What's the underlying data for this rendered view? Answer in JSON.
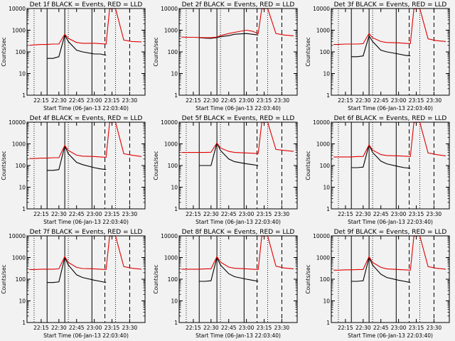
{
  "figure": {
    "background": "#f2f2f2",
    "colors": {
      "events": "#000000",
      "lld": "#e00000",
      "axes": "#000000",
      "markers": "#000000"
    }
  },
  "chart_data": [
    {
      "type": "line",
      "title": "Det 1f BLACK = Events, RED = LLD",
      "xlabel": "Start Time (06-Jan-13 22:03:40)",
      "ylabel": "Counts/sec",
      "y_scale": "log",
      "ylim": [
        1,
        10000
      ],
      "x_ticks": [
        "22:15",
        "22:30",
        "22:45",
        "23:00",
        "23:15",
        "23:30"
      ],
      "y_ticks": [
        "1",
        "10",
        "100",
        "1000",
        "10000"
      ],
      "x": [
        "22:05",
        "22:09",
        "22:15",
        "22:20",
        "22:25",
        "22:30",
        "22:35",
        "22:38",
        "22:45",
        "22:50",
        "23:00",
        "23:05",
        "23:10",
        "23:13",
        "23:18",
        "23:25",
        "23:32",
        "23:40"
      ],
      "series": [
        {
          "name": "Events",
          "values": [
            null,
            null,
            null,
            50,
            50,
            60,
            600,
            300,
            120,
            100,
            80,
            80,
            70,
            null,
            null,
            null,
            null,
            null
          ]
        },
        {
          "name": "LLD",
          "values": [
            200,
            210,
            220,
            220,
            230,
            230,
            650,
            420,
            270,
            250,
            250,
            240,
            230,
            9800,
            10000,
            350,
            300,
            290
          ]
        }
      ]
    },
    {
      "type": "line",
      "title": "Det 2f BLACK = Events, RED = LLD",
      "xlabel": "Start Time (06-Jan-13 22:03:40)",
      "ylabel": "Counts/sec",
      "y_scale": "log",
      "ylim": [
        1,
        10000
      ],
      "x_ticks": [
        "22:15",
        "22:30",
        "22:45",
        "23:00",
        "23:15",
        "23:30"
      ],
      "y_ticks": [
        "1",
        "10",
        "100",
        "1000",
        "10000"
      ],
      "x": [
        "22:05",
        "22:09",
        "22:15",
        "22:20",
        "22:25",
        "22:30",
        "22:35",
        "22:38",
        "22:45",
        "22:50",
        "23:00",
        "23:05",
        "23:10",
        "23:13",
        "23:18",
        "23:25",
        "23:32",
        "23:40"
      ],
      "series": [
        {
          "name": "Events",
          "values": [
            null,
            null,
            null,
            450,
            430,
            420,
            460,
            500,
            560,
            650,
            700,
            650,
            600,
            null,
            null,
            null,
            null,
            null
          ]
        },
        {
          "name": "LLD",
          "values": [
            480,
            470,
            470,
            460,
            450,
            450,
            480,
            560,
            700,
            800,
            1000,
            900,
            700,
            9800,
            10000,
            700,
            600,
            550
          ]
        }
      ]
    },
    {
      "type": "line",
      "title": "Det 3f BLACK = Events, RED = LLD",
      "xlabel": "Start Time (06-Jan-13 22:03:40)",
      "ylabel": "Counts/sec",
      "y_scale": "log",
      "ylim": [
        1,
        10000
      ],
      "x_ticks": [
        "22:15",
        "22:30",
        "22:45",
        "23:00",
        "23:15",
        "23:30"
      ],
      "y_ticks": [
        "1",
        "10",
        "100",
        "1000",
        "10000"
      ],
      "x": [
        "22:05",
        "22:09",
        "22:15",
        "22:20",
        "22:25",
        "22:30",
        "22:35",
        "22:38",
        "22:45",
        "22:50",
        "23:00",
        "23:05",
        "23:10",
        "23:13",
        "23:18",
        "23:25",
        "23:32",
        "23:40"
      ],
      "series": [
        {
          "name": "Events",
          "values": [
            null,
            null,
            null,
            60,
            60,
            65,
            550,
            300,
            120,
            100,
            80,
            70,
            65,
            null,
            null,
            null,
            null,
            null
          ]
        },
        {
          "name": "LLD",
          "values": [
            220,
            220,
            230,
            230,
            230,
            240,
            700,
            450,
            300,
            270,
            260,
            250,
            240,
            9800,
            10000,
            400,
            330,
            300
          ]
        }
      ]
    },
    {
      "type": "line",
      "title": "Det 4f BLACK = Events, RED = LLD",
      "xlabel": "Start Time (06-Jan-13 22:03:40)",
      "ylabel": "Counts/sec",
      "y_scale": "log",
      "ylim": [
        1,
        10000
      ],
      "x_ticks": [
        "22:15",
        "22:30",
        "22:45",
        "23:00",
        "23:15",
        "23:30"
      ],
      "y_ticks": [
        "1",
        "10",
        "100",
        "1000",
        "10000"
      ],
      "x": [
        "22:05",
        "22:09",
        "22:15",
        "22:20",
        "22:25",
        "22:30",
        "22:35",
        "22:38",
        "22:45",
        "22:50",
        "23:00",
        "23:05",
        "23:10",
        "23:13",
        "23:18",
        "23:25",
        "23:32",
        "23:40"
      ],
      "series": [
        {
          "name": "Events",
          "values": [
            null,
            null,
            null,
            60,
            60,
            65,
            800,
            350,
            140,
            110,
            80,
            70,
            65,
            null,
            null,
            null,
            null,
            null
          ]
        },
        {
          "name": "LLD",
          "values": [
            210,
            210,
            220,
            220,
            230,
            230,
            850,
            500,
            300,
            270,
            260,
            250,
            240,
            9800,
            10000,
            350,
            300,
            260
          ]
        }
      ]
    },
    {
      "type": "line",
      "title": "Det 5f BLACK = Events, RED = LLD",
      "xlabel": "Start Time (06-Jan-13 22:03:40)",
      "ylabel": "Counts/sec",
      "y_scale": "log",
      "ylim": [
        1,
        10000
      ],
      "x_ticks": [
        "22:15",
        "22:30",
        "22:45",
        "23:00",
        "23:15",
        "23:30"
      ],
      "y_ticks": [
        "1",
        "10",
        "100",
        "1000",
        "10000"
      ],
      "x": [
        "22:05",
        "22:09",
        "22:15",
        "22:20",
        "22:25",
        "22:30",
        "22:35",
        "22:38",
        "22:45",
        "22:50",
        "23:00",
        "23:05",
        "23:10",
        "23:13",
        "23:18",
        "23:25",
        "23:32",
        "23:40"
      ],
      "series": [
        {
          "name": "Events",
          "values": [
            null,
            null,
            null,
            100,
            100,
            100,
            1100,
            500,
            200,
            150,
            120,
            110,
            100,
            null,
            null,
            null,
            null,
            null
          ]
        },
        {
          "name": "LLD",
          "values": [
            400,
            400,
            400,
            400,
            400,
            410,
            1100,
            650,
            450,
            400,
            380,
            370,
            360,
            9800,
            10000,
            550,
            500,
            450
          ]
        }
      ]
    },
    {
      "type": "line",
      "title": "Det 6f BLACK = Events, RED = LLD",
      "xlabel": "Start Time (06-Jan-13 22:03:40)",
      "ylabel": "Counts/sec",
      "y_scale": "log",
      "ylim": [
        1,
        10000
      ],
      "x_ticks": [
        "22:15",
        "22:30",
        "22:45",
        "23:00",
        "23:15",
        "23:30"
      ],
      "y_ticks": [
        "1",
        "10",
        "100",
        "1000",
        "10000"
      ],
      "x": [
        "22:05",
        "22:09",
        "22:15",
        "22:20",
        "22:25",
        "22:30",
        "22:35",
        "22:38",
        "22:45",
        "22:50",
        "23:00",
        "23:05",
        "23:10",
        "23:13",
        "23:18",
        "23:25",
        "23:32",
        "23:40"
      ],
      "series": [
        {
          "name": "Events",
          "values": [
            null,
            null,
            null,
            80,
            80,
            85,
            900,
            400,
            160,
            120,
            90,
            80,
            75,
            null,
            null,
            null,
            null,
            null
          ]
        },
        {
          "name": "LLD",
          "values": [
            250,
            250,
            250,
            250,
            260,
            260,
            900,
            520,
            320,
            290,
            280,
            270,
            260,
            9800,
            10000,
            380,
            320,
            280
          ]
        }
      ]
    },
    {
      "type": "line",
      "title": "Det 7f BLACK = Events, RED = LLD",
      "xlabel": "Start Time (06-Jan-13 22:03:40)",
      "ylabel": "Counts/sec",
      "y_scale": "log",
      "ylim": [
        1,
        10000
      ],
      "x_ticks": [
        "22:15",
        "22:30",
        "22:45",
        "23:00",
        "23:15",
        "23:30"
      ],
      "y_ticks": [
        "1",
        "10",
        "100",
        "1000",
        "10000"
      ],
      "x": [
        "22:05",
        "22:09",
        "22:15",
        "22:20",
        "22:25",
        "22:30",
        "22:35",
        "22:38",
        "22:45",
        "22:50",
        "23:00",
        "23:05",
        "23:10",
        "23:13",
        "23:18",
        "23:25",
        "23:32",
        "23:40"
      ],
      "series": [
        {
          "name": "Events",
          "values": [
            null,
            null,
            null,
            70,
            70,
            75,
            1000,
            450,
            160,
            120,
            90,
            80,
            70,
            null,
            null,
            null,
            null,
            null
          ]
        },
        {
          "name": "LLD",
          "values": [
            280,
            280,
            290,
            290,
            290,
            300,
            1100,
            600,
            350,
            310,
            300,
            290,
            280,
            9800,
            10000,
            380,
            320,
            290
          ]
        }
      ]
    },
    {
      "type": "line",
      "title": "Det 8f BLACK = Events, RED = LLD",
      "xlabel": "Start Time (06-Jan-13 22:03:40)",
      "ylabel": "Counts/sec",
      "y_scale": "log",
      "ylim": [
        1,
        10000
      ],
      "x_ticks": [
        "22:15",
        "22:30",
        "22:45",
        "23:00",
        "23:15",
        "23:30"
      ],
      "y_ticks": [
        "1",
        "10",
        "100",
        "1000",
        "10000"
      ],
      "x": [
        "22:05",
        "22:09",
        "22:15",
        "22:20",
        "22:25",
        "22:30",
        "22:35",
        "22:38",
        "22:45",
        "22:50",
        "23:00",
        "23:05",
        "23:10",
        "23:13",
        "23:18",
        "23:25",
        "23:32",
        "23:40"
      ],
      "series": [
        {
          "name": "Events",
          "values": [
            null,
            null,
            null,
            80,
            80,
            85,
            1000,
            450,
            180,
            130,
            100,
            90,
            80,
            null,
            null,
            null,
            null,
            null
          ]
        },
        {
          "name": "LLD",
          "values": [
            290,
            290,
            290,
            290,
            300,
            300,
            1100,
            620,
            360,
            320,
            300,
            290,
            280,
            9800,
            10000,
            400,
            330,
            300
          ]
        }
      ]
    },
    {
      "type": "line",
      "title": "Det 9f BLACK = Events, RED = LLD",
      "xlabel": "Start Time (06-Jan-13 22:03:40)",
      "ylabel": "Counts/sec",
      "y_scale": "log",
      "ylim": [
        1,
        10000
      ],
      "x_ticks": [
        "22:15",
        "22:30",
        "22:45",
        "23:00",
        "23:15",
        "23:30"
      ],
      "y_ticks": [
        "1",
        "10",
        "100",
        "1000",
        "10000"
      ],
      "x": [
        "22:05",
        "22:09",
        "22:15",
        "22:20",
        "22:25",
        "22:30",
        "22:35",
        "22:38",
        "22:45",
        "22:50",
        "23:00",
        "23:05",
        "23:10",
        "23:13",
        "23:18",
        "23:25",
        "23:32",
        "23:40"
      ],
      "series": [
        {
          "name": "Events",
          "values": [
            null,
            null,
            null,
            80,
            80,
            85,
            1000,
            450,
            170,
            120,
            90,
            80,
            70,
            null,
            null,
            null,
            null,
            null
          ]
        },
        {
          "name": "LLD",
          "values": [
            260,
            260,
            270,
            270,
            280,
            280,
            1100,
            600,
            350,
            300,
            280,
            270,
            260,
            9800,
            10000,
            380,
            320,
            290
          ]
        }
      ]
    }
  ],
  "markers": {
    "dotted": [
      "22:09",
      "22:38",
      "23:18"
    ],
    "solid": [
      "22:20",
      "22:35",
      "22:58"
    ],
    "dashed": [
      "23:09",
      "23:30"
    ]
  }
}
